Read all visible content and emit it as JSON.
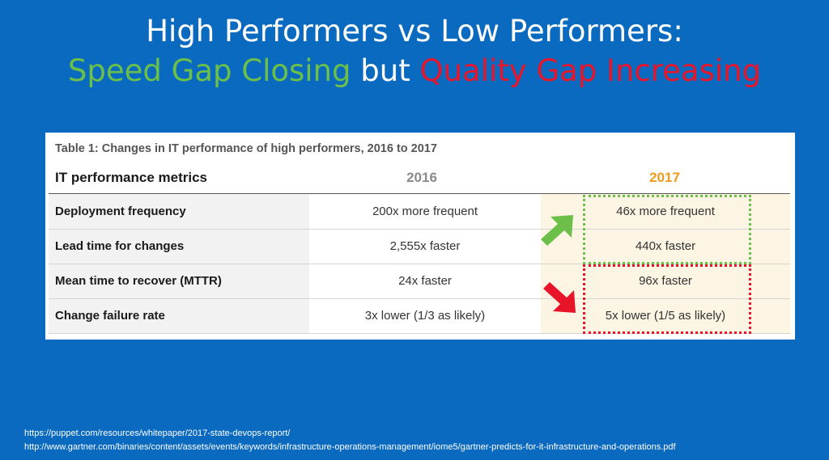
{
  "title": {
    "line1": "High Performers vs Low Performers:",
    "line2_part1": "Speed Gap Closing",
    "line2_part2": " but ",
    "line2_part3": "Quality Gap Increasing"
  },
  "table": {
    "caption": "Table 1: Changes in IT performance of high performers, 2016 to 2017",
    "headers": [
      "IT performance metrics",
      "2016",
      "2017"
    ],
    "rows": [
      [
        "Deployment frequency",
        "200x more frequent",
        "46x more frequent"
      ],
      [
        "Lead time for changes",
        "2,555x faster",
        "440x faster"
      ],
      [
        "Mean time to recover (MTTR)",
        "24x faster",
        "96x faster"
      ],
      [
        "Change failure rate",
        "3x lower (1/3 as likely)",
        "5x lower (1/5 as likely)"
      ]
    ]
  },
  "sources": [
    "https://puppet.com/resources/whitepaper/2017-state-devops-report/",
    "http://www.gartner.com/binaries/content/assets/events/keywords/infrastructure-operations-management/iome5/gartner-predicts-for-it-infrastructure-and-operations.pdf"
  ],
  "colors": {
    "background": "#0a6abf",
    "speed_green": "#6cc04a",
    "quality_red": "#e8142a",
    "year_2017_orange": "#f39a1e"
  },
  "icons": [
    "arrow-up-right-icon",
    "arrow-down-right-icon"
  ]
}
